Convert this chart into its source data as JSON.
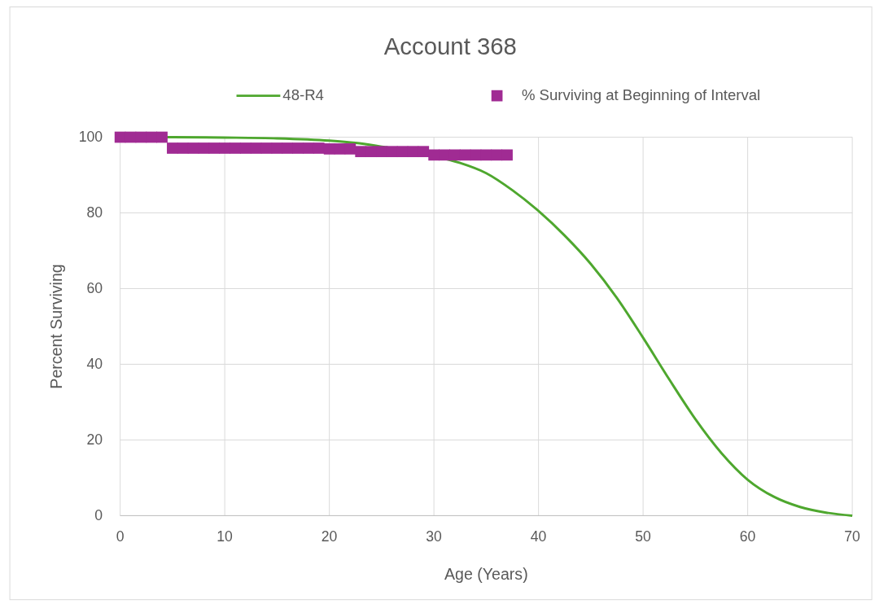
{
  "chart_data": {
    "type": "line",
    "title": "Account 368",
    "xlabel": "Age (Years)",
    "ylabel": "Percent Surviving",
    "xlim": [
      0,
      70
    ],
    "xticks": [
      0,
      10,
      20,
      30,
      40,
      50,
      60,
      70
    ],
    "ylim": [
      0,
      100
    ],
    "yticks": [
      0,
      20,
      40,
      60,
      80,
      100
    ],
    "grid": true,
    "legend": "top",
    "series": [
      {
        "name": "48-R4",
        "color": "#4ea72e",
        "marker": "none",
        "line_style": "solid",
        "x": [
          0,
          5,
          10,
          15,
          20,
          22.5,
          25,
          27.5,
          30,
          32.5,
          35,
          37.5,
          40,
          42.5,
          45,
          47.5,
          50,
          52.5,
          55,
          57.5,
          60,
          62.5,
          65,
          67.5,
          70
        ],
        "values": [
          100,
          100,
          99.9,
          99.7,
          99.1,
          98.5,
          97.5,
          96.4,
          95,
          93.2,
          90.5,
          86,
          80.5,
          74,
          66.5,
          57.5,
          47,
          36,
          25.5,
          16.5,
          9.5,
          5,
          2.3,
          0.8,
          0
        ]
      },
      {
        "name": "% Surviving at Beginning of Interval",
        "type": "scatter",
        "color": "#a02b93",
        "marker": "square",
        "x": [
          0,
          1,
          2,
          3,
          4,
          5,
          6,
          7,
          8,
          9,
          10,
          11,
          12,
          13,
          14,
          15,
          16,
          17,
          18,
          19,
          20,
          21,
          22,
          23,
          24,
          25,
          26,
          27,
          28,
          29,
          30,
          31,
          32,
          33,
          34,
          35,
          36,
          37
        ],
        "values": [
          100,
          100,
          100,
          100,
          100,
          97.1,
          97.1,
          97.1,
          97.1,
          97.1,
          97.1,
          97.1,
          97.1,
          97.1,
          97.1,
          97.1,
          97.1,
          97.1,
          97.1,
          97.1,
          96.9,
          96.9,
          96.9,
          96.2,
          96.2,
          96.2,
          96.2,
          96.2,
          96.2,
          96.2,
          95.3,
          95.3,
          95.3,
          95.3,
          95.3,
          95.3,
          95.3,
          95.3
        ]
      }
    ]
  }
}
